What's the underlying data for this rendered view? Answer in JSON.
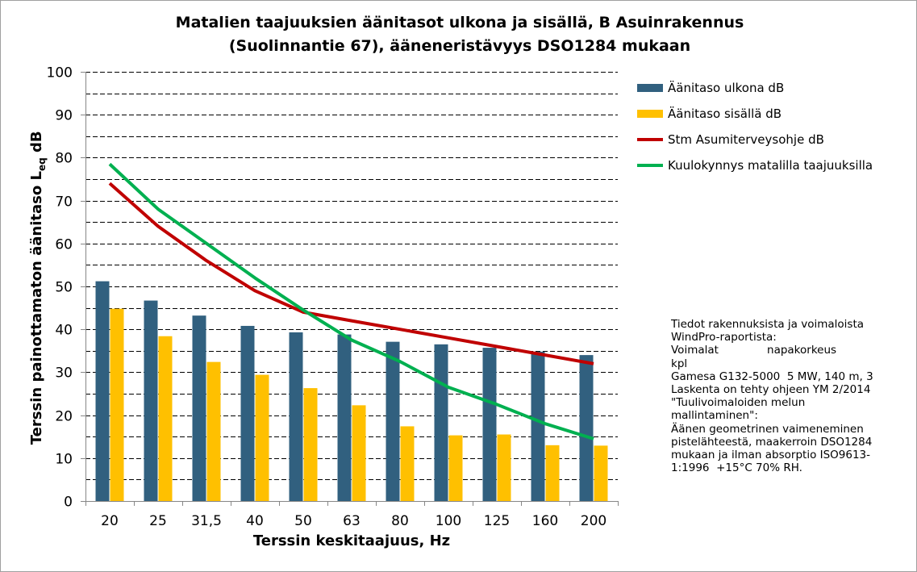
{
  "chart_data": {
    "type": "bar",
    "title": [
      "Matalien taajuuksien äänitasot ulkona ja sisällä, B Asuinrakennus",
      "(Suolinnantie 67), ääneneristävyys DSO1284 mukaan"
    ],
    "xlabel": "Terssin keskitaajuus, Hz",
    "ylabel": {
      "main": "Terssin painottamaton äänitaso L",
      "sub": "eq",
      "unit": " dB"
    },
    "ylim": [
      0,
      100
    ],
    "yticks": [
      0,
      10,
      20,
      30,
      40,
      50,
      60,
      70,
      80,
      90,
      100
    ],
    "grid": "dashed",
    "legend_position": "right",
    "categories": [
      "20",
      "25",
      "31,5",
      "40",
      "50",
      "63",
      "80",
      "100",
      "125",
      "160",
      "200"
    ],
    "series": [
      {
        "name": "Äänitaso ulkona dB",
        "kind": "bar",
        "color": "#31607f",
        "values": [
          51.2,
          46.7,
          43.2,
          40.8,
          39.3,
          38.8,
          37.1,
          36.5,
          35.7,
          34.8,
          34.0
        ]
      },
      {
        "name": "Äänitaso sisällä dB",
        "kind": "bar",
        "color": "#ffc000",
        "values": [
          44.8,
          38.4,
          32.4,
          29.4,
          26.3,
          22.3,
          17.4,
          15.3,
          15.5,
          13.0,
          12.9
        ]
      },
      {
        "name": "Stm Asumiterveysohje dB",
        "kind": "line",
        "color": "#c00000",
        "values": [
          74,
          64,
          56,
          49,
          44,
          42,
          40,
          38,
          36,
          34,
          32
        ]
      },
      {
        "name": "Kuulokynnys matalilla taajuuksilla",
        "kind": "line",
        "color": "#00b050",
        "values": [
          78.5,
          68,
          60,
          52,
          44.5,
          37.5,
          32.5,
          26.5,
          22.5,
          18,
          14.5
        ]
      }
    ]
  },
  "notes": [
    "Tiedot rakennuksista ja voimaloista",
    "WindPro-raportista:",
    "Voimalat              napakorkeus",
    "kpl",
    "Gamesa G132-5000  5 MW, 140 m, 3",
    "Laskenta on tehty ohjeen YM 2/2014",
    "\"Tuulivoimaloiden melun",
    "mallintaminen\":",
    "Äänen geometrinen vaimeneminen",
    "pistelähteestä, maakerroin DSO1284",
    "mukaan ja ilman absorptio ISO9613-",
    "1:1996  +15°C 70% RH."
  ]
}
